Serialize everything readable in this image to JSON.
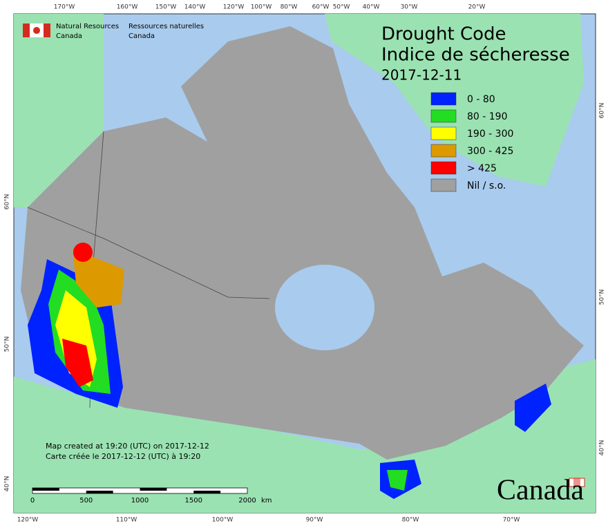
{
  "header": {
    "en_line1": "Natural Resources",
    "en_line2": "Canada",
    "fr_line1": "Ressources naturelles",
    "fr_line2": "Canada"
  },
  "title": {
    "en": "Drought Code",
    "fr": "Indice de sécheresse",
    "date": "2017-12-11"
  },
  "legend": [
    {
      "label": "0 - 80",
      "color": "#0022ff"
    },
    {
      "label": "80 - 190",
      "color": "#22dd22"
    },
    {
      "label": "190 - 300",
      "color": "#ffff00"
    },
    {
      "label": "300 - 425",
      "color": "#dd9900"
    },
    {
      "label": "> 425",
      "color": "#ff0000"
    },
    {
      "label": "Nil / s.o.",
      "color": "#a0a0a0"
    }
  ],
  "footer": {
    "en": "Map created at 19:20 (UTC) on 2017-12-12",
    "fr": "Carte créée le 2017-12-12 (UTC) à 19:20"
  },
  "scale_bar": {
    "ticks": [
      0,
      500,
      1000,
      1500,
      2000
    ],
    "unit": "km"
  },
  "graticule": {
    "top": [
      "170°W",
      "160°W",
      "150°W",
      "140°W",
      "120°W",
      "100°W",
      "80°W",
      "60°W",
      "50°W",
      "40°W",
      "30°W",
      "20°W"
    ],
    "bottom": [
      "120°W",
      "110°W",
      "100°W",
      "90°W",
      "80°W",
      "70°W"
    ],
    "left": [
      "60°N",
      "50°N",
      "40°N"
    ],
    "right": [
      "60°N",
      "50°N",
      "40°N"
    ]
  },
  "wordmark": "Canada"
}
